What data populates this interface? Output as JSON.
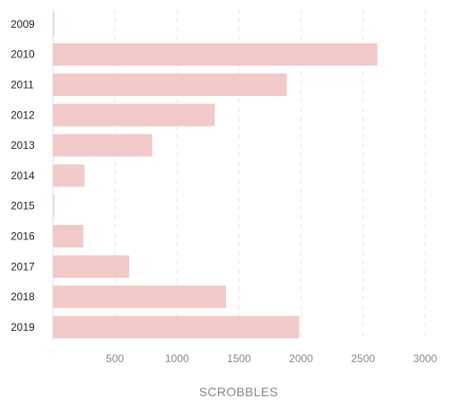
{
  "chart_data": {
    "type": "bar",
    "orientation": "horizontal",
    "categories": [
      "2009",
      "2010",
      "2011",
      "2012",
      "2013",
      "2014",
      "2015",
      "2016",
      "2017",
      "2018",
      "2019"
    ],
    "values": [
      8,
      2615,
      1885,
      1305,
      800,
      255,
      8,
      245,
      615,
      1395,
      1985
    ],
    "xlabel": "SCROBBLES",
    "ylabel": "",
    "xlim": [
      0,
      3000
    ],
    "x_ticks": [
      "500",
      "1000",
      "1500",
      "2000",
      "2500",
      "3000"
    ],
    "x_tick_values": [
      500,
      1000,
      1500,
      2000,
      2500,
      3000
    ],
    "grid": true,
    "bar_color": "#f2c9c9"
  }
}
